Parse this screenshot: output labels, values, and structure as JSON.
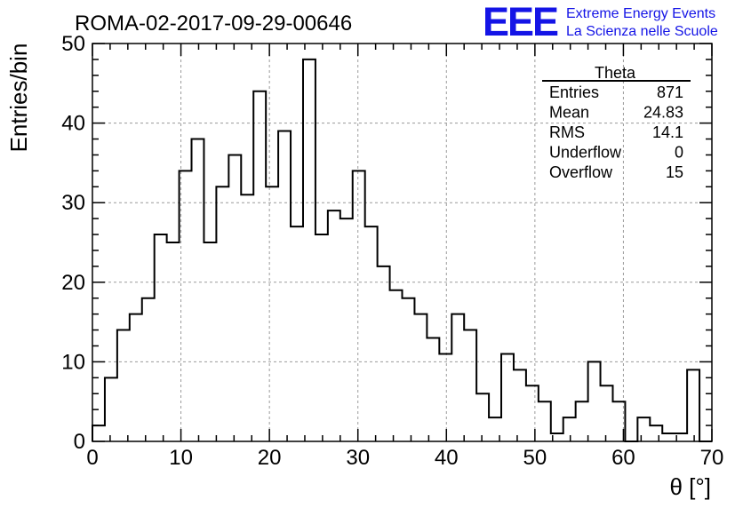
{
  "header": {
    "run_title": "ROMA-02-2017-09-29-00646",
    "logo_text": "EEE",
    "logo_line1": "Extreme Energy Events",
    "logo_line2": "La Scienza nelle Scuole",
    "logo_color": "#1414e6"
  },
  "chart_data": {
    "type": "histogram",
    "xlabel": "θ [°]",
    "ylabel": "Entries/bin",
    "xlim": [
      0,
      70
    ],
    "ylim": [
      0,
      50
    ],
    "x_ticks": [
      0,
      10,
      20,
      30,
      40,
      50,
      60,
      70
    ],
    "y_ticks": [
      0,
      10,
      20,
      30,
      40,
      50
    ],
    "grid": true,
    "bin_width": 1.4,
    "bin_edges_start": 0,
    "values": [
      2,
      8,
      14,
      16,
      18,
      26,
      25,
      34,
      38,
      25,
      32,
      36,
      31,
      44,
      32,
      39,
      27,
      48,
      26,
      29,
      28,
      34,
      27,
      22,
      19,
      18,
      16,
      13,
      11,
      16,
      14,
      6,
      3,
      11,
      9,
      7,
      5,
      1,
      3,
      5,
      10,
      7,
      5,
      0,
      3,
      2,
      1,
      1,
      9,
      0
    ],
    "line_color": "#000000"
  },
  "stats_box": {
    "title": "Theta",
    "rows": [
      {
        "label": "Entries",
        "value": "871"
      },
      {
        "label": "Mean",
        "value": "24.83"
      },
      {
        "label": "RMS",
        "value": "14.1"
      },
      {
        "label": "Underflow",
        "value": "0"
      },
      {
        "label": "Overflow",
        "value": "15"
      }
    ]
  }
}
